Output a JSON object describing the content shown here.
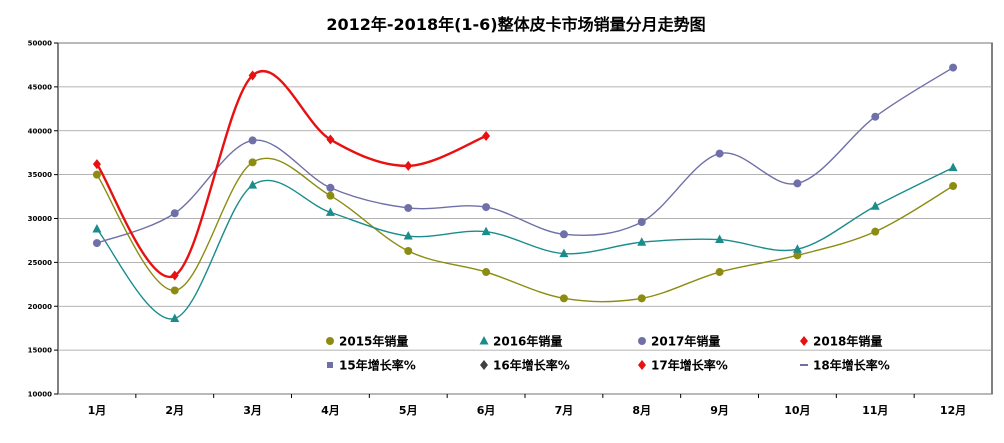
{
  "chart_data": {
    "type": "line",
    "title": "2012年-2018年(1-6)整体皮卡市场销量分月走势图",
    "xlabel": "",
    "ylabel": "",
    "categories": [
      "1月",
      "2月",
      "3月",
      "4月",
      "5月",
      "6月",
      "7月",
      "8月",
      "9月",
      "10月",
      "11月",
      "12月"
    ],
    "ylim": [
      10000,
      50000
    ],
    "yticks": [
      "50000",
      "45000",
      "40000",
      "35000",
      "30000",
      "25000",
      "20000",
      "15000",
      "10000"
    ],
    "grid": true,
    "series": [
      {
        "name": "2015年销量",
        "color": "#8c8c12",
        "marker": "circle",
        "values": [
          35000,
          21800,
          36400,
          32600,
          26300,
          23900,
          20900,
          20900,
          23900,
          25800,
          28500,
          33700
        ]
      },
      {
        "name": "2016年销量",
        "color": "#1a8c8c",
        "marker": "triangle",
        "values": [
          28800,
          18600,
          33800,
          30700,
          28000,
          28500,
          26000,
          27300,
          27600,
          26500,
          31400,
          35800
        ]
      },
      {
        "name": "2017年销量",
        "color": "#7070a8",
        "marker": "circle",
        "values": [
          27200,
          30600,
          38900,
          33500,
          31200,
          31300,
          28200,
          29600,
          37400,
          34000,
          41600,
          47200
        ]
      },
      {
        "name": "2018年销量",
        "color": "#e81010",
        "marker": "diamond",
        "values": [
          36200,
          23500,
          46300,
          39000,
          36000,
          39400,
          null,
          null,
          null,
          null,
          null,
          null
        ]
      }
    ],
    "legend": [
      {
        "label": "2015年销量",
        "color": "#8c8c12",
        "marker": "circle"
      },
      {
        "label": "2016年销量",
        "color": "#1a8c8c",
        "marker": "triangle"
      },
      {
        "label": "2017年销量",
        "color": "#7070a8",
        "marker": "circle"
      },
      {
        "label": "2018年销量",
        "color": "#e81010",
        "marker": "diamond"
      },
      {
        "label": "15年增长率%",
        "color": "#7070a8",
        "marker": "square"
      },
      {
        "label": "16年增长率%",
        "color": "#404040",
        "marker": "diamond"
      },
      {
        "label": "17年增长率%",
        "color": "#e81010",
        "marker": "diamond"
      },
      {
        "label": "18年增长率%",
        "color": "#7070a8",
        "marker": "dash"
      }
    ]
  }
}
